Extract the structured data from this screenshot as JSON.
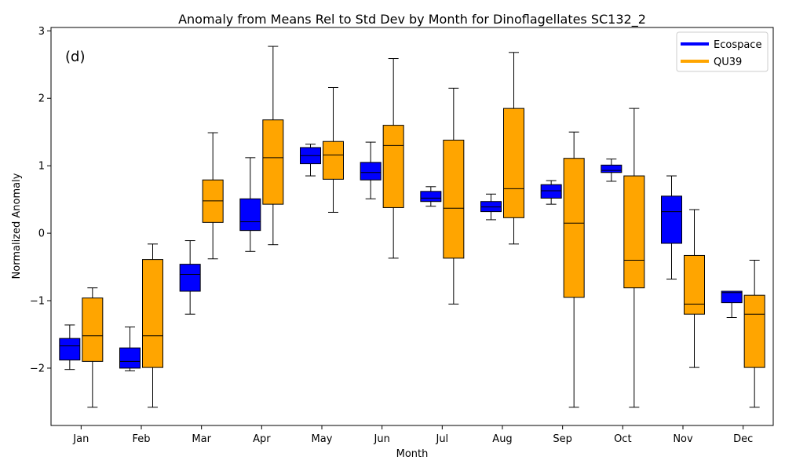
{
  "chart_data": {
    "type": "boxplot",
    "title": "Anomaly from Means Rel to Std Dev by Month for Dinoflagellates SC132_2",
    "xlabel": "Month",
    "ylabel": "Normalized Anomaly",
    "panel_label": "(d)",
    "ylim": [
      -2.85,
      3.05
    ],
    "yticks": [
      3,
      2,
      1,
      0,
      -1,
      -2
    ],
    "ytick_labels": [
      "3",
      "2",
      "1",
      "0",
      "−1",
      "−2"
    ],
    "grid": false,
    "legend_position": "top-right",
    "categories": [
      "Jan",
      "Feb",
      "Mar",
      "Apr",
      "May",
      "Jun",
      "Jul",
      "Aug",
      "Sep",
      "Oct",
      "Nov",
      "Dec"
    ],
    "series": [
      {
        "name": "Ecospace",
        "color": "#0000ff",
        "boxes": [
          {
            "whislo": -2.02,
            "q1": -1.88,
            "med": -1.67,
            "q3": -1.56,
            "whishi": -1.36
          },
          {
            "whislo": -2.04,
            "q1": -2.0,
            "med": -1.9,
            "q3": -1.7,
            "whishi": -1.39
          },
          {
            "whislo": -1.2,
            "q1": -0.86,
            "med": -0.61,
            "q3": -0.46,
            "whishi": -0.11
          },
          {
            "whislo": -0.27,
            "q1": 0.04,
            "med": 0.17,
            "q3": 0.51,
            "whishi": 1.12
          },
          {
            "whislo": 0.85,
            "q1": 1.03,
            "med": 1.15,
            "q3": 1.27,
            "whishi": 1.32
          },
          {
            "whislo": 0.51,
            "q1": 0.79,
            "med": 0.9,
            "q3": 1.05,
            "whishi": 1.35
          },
          {
            "whislo": 0.4,
            "q1": 0.47,
            "med": 0.52,
            "q3": 0.62,
            "whishi": 0.69
          },
          {
            "whislo": 0.2,
            "q1": 0.32,
            "med": 0.39,
            "q3": 0.47,
            "whishi": 0.58
          },
          {
            "whislo": 0.43,
            "q1": 0.52,
            "med": 0.63,
            "q3": 0.72,
            "whishi": 0.78
          },
          {
            "whislo": 0.77,
            "q1": 0.9,
            "med": 0.93,
            "q3": 1.01,
            "whishi": 1.1
          },
          {
            "whislo": -0.68,
            "q1": -0.15,
            "med": 0.32,
            "q3": 0.55,
            "whishi": 0.85
          },
          {
            "whislo": -1.25,
            "q1": -1.03,
            "med": -0.88,
            "q3": -0.86,
            "whishi": -0.86
          }
        ]
      },
      {
        "name": "QU39",
        "color": "#ffa500",
        "boxes": [
          {
            "whislo": -2.58,
            "q1": -1.9,
            "med": -1.52,
            "q3": -0.96,
            "whishi": -0.81
          },
          {
            "whislo": -2.58,
            "q1": -1.99,
            "med": -1.52,
            "q3": -0.39,
            "whishi": -0.16
          },
          {
            "whislo": -0.38,
            "q1": 0.16,
            "med": 0.48,
            "q3": 0.79,
            "whishi": 1.49
          },
          {
            "whislo": -0.17,
            "q1": 0.43,
            "med": 1.12,
            "q3": 1.68,
            "whishi": 2.77
          },
          {
            "whislo": 0.31,
            "q1": 0.8,
            "med": 1.16,
            "q3": 1.36,
            "whishi": 2.16
          },
          {
            "whislo": -0.37,
            "q1": 0.38,
            "med": 1.3,
            "q3": 1.6,
            "whishi": 2.59
          },
          {
            "whislo": -1.05,
            "q1": -0.37,
            "med": 0.37,
            "q3": 1.38,
            "whishi": 2.15
          },
          {
            "whislo": -0.16,
            "q1": 0.23,
            "med": 0.66,
            "q3": 1.85,
            "whishi": 2.68
          },
          {
            "whislo": -2.58,
            "q1": -0.95,
            "med": 0.15,
            "q3": 1.11,
            "whishi": 1.5
          },
          {
            "whislo": -2.58,
            "q1": -0.81,
            "med": -0.4,
            "q3": 0.85,
            "whishi": 1.85
          },
          {
            "whislo": -1.99,
            "q1": -1.2,
            "med": -1.05,
            "q3": -0.33,
            "whishi": 0.35
          },
          {
            "whislo": -2.58,
            "q1": -1.99,
            "med": -1.2,
            "q3": -0.92,
            "whishi": -0.4
          }
        ]
      }
    ]
  }
}
